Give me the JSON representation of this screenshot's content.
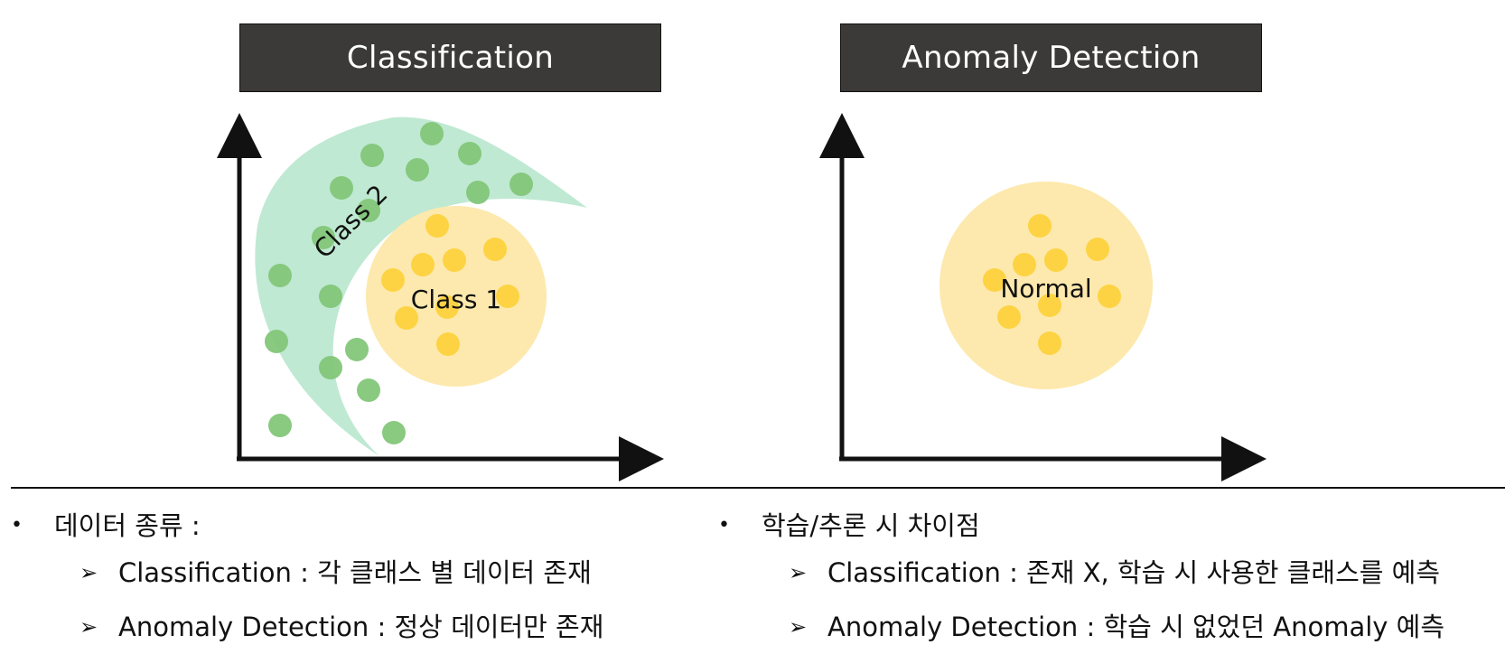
{
  "left_panel": {
    "title": "Classification",
    "class1_label": "Class 1",
    "class2_label": "Class 2",
    "colors": {
      "class1_region": "#fde9ad",
      "class1_point": "#fdd343",
      "class2_region": "#bfe9d3",
      "class2_point": "#83c77a"
    }
  },
  "right_panel": {
    "title": "Anomaly Detection",
    "normal_label": "Normal",
    "colors": {
      "region": "#fde9ad",
      "point": "#fdd343"
    }
  },
  "notes": {
    "left": {
      "heading": "데이터 종류 :",
      "items": [
        "Classification : 각 클래스 별 데이터 존재",
        "Anomaly Detection : 정상 데이터만 존재"
      ]
    },
    "right": {
      "heading": "학습/추론 시 차이점",
      "items": [
        "Classification : 존재 X, 학습 시 사용한 클래스를 예측",
        "Anomaly Detection : 학습 시 없었던 Anomaly 예측"
      ]
    },
    "bullet_symbol": "•",
    "sub_symbol": "➢"
  }
}
